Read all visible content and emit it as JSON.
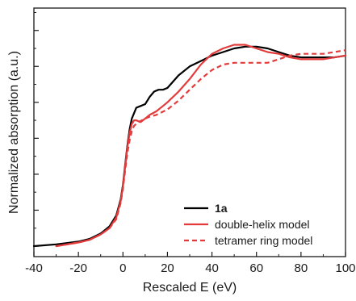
{
  "chart_data": {
    "type": "line",
    "xlabel": "Rescaled E (eV)",
    "ylabel": "Normalized absorption (a.u.)",
    "xlim": [
      -40,
      100
    ],
    "ylim": [
      0,
      1.32
    ],
    "x_ticks": [
      -40,
      -20,
      0,
      20,
      40,
      60,
      80,
      100
    ],
    "x_tick_labels": [
      "-40",
      "-20",
      "0",
      "20",
      "40",
      "60",
      "80",
      "100"
    ],
    "y_tick_labels_shown": false,
    "grid": false,
    "legend_position": "bottom-right",
    "series": [
      {
        "name": "1a",
        "color": "#000000",
        "style": "solid",
        "points": [
          [
            -40,
            0.0
          ],
          [
            -30,
            0.01
          ],
          [
            -20,
            0.025
          ],
          [
            -15,
            0.04
          ],
          [
            -10,
            0.07
          ],
          [
            -6,
            0.11
          ],
          [
            -3,
            0.17
          ],
          [
            -1,
            0.26
          ],
          [
            0,
            0.34
          ],
          [
            1,
            0.45
          ],
          [
            2,
            0.56
          ],
          [
            3,
            0.65
          ],
          [
            4,
            0.71
          ],
          [
            5,
            0.74
          ],
          [
            6,
            0.77
          ],
          [
            8,
            0.78
          ],
          [
            10,
            0.79
          ],
          [
            12,
            0.83
          ],
          [
            14,
            0.86
          ],
          [
            16,
            0.87
          ],
          [
            18,
            0.87
          ],
          [
            20,
            0.88
          ],
          [
            25,
            0.95
          ],
          [
            30,
            1.0
          ],
          [
            35,
            1.03
          ],
          [
            40,
            1.06
          ],
          [
            45,
            1.08
          ],
          [
            50,
            1.1
          ],
          [
            55,
            1.11
          ],
          [
            60,
            1.11
          ],
          [
            65,
            1.1
          ],
          [
            70,
            1.08
          ],
          [
            75,
            1.06
          ],
          [
            80,
            1.05
          ],
          [
            85,
            1.05
          ],
          [
            90,
            1.05
          ],
          [
            95,
            1.05
          ],
          [
            100,
            1.06
          ]
        ]
      },
      {
        "name": "double-helix model",
        "color": "#e33b3b",
        "style": "solid",
        "points": [
          [
            -30,
            0.0
          ],
          [
            -20,
            0.02
          ],
          [
            -15,
            0.035
          ],
          [
            -10,
            0.065
          ],
          [
            -6,
            0.1
          ],
          [
            -3,
            0.16
          ],
          [
            -1,
            0.25
          ],
          [
            0,
            0.33
          ],
          [
            1,
            0.44
          ],
          [
            2,
            0.55
          ],
          [
            3,
            0.63
          ],
          [
            4,
            0.68
          ],
          [
            5,
            0.7
          ],
          [
            6,
            0.7
          ],
          [
            8,
            0.69
          ],
          [
            10,
            0.71
          ],
          [
            12,
            0.73
          ],
          [
            15,
            0.75
          ],
          [
            18,
            0.78
          ],
          [
            20,
            0.8
          ],
          [
            25,
            0.86
          ],
          [
            30,
            0.93
          ],
          [
            35,
            1.01
          ],
          [
            40,
            1.07
          ],
          [
            45,
            1.1
          ],
          [
            50,
            1.12
          ],
          [
            55,
            1.12
          ],
          [
            60,
            1.1
          ],
          [
            65,
            1.08
          ],
          [
            70,
            1.07
          ],
          [
            75,
            1.05
          ],
          [
            80,
            1.04
          ],
          [
            85,
            1.04
          ],
          [
            90,
            1.04
          ],
          [
            95,
            1.05
          ],
          [
            100,
            1.06
          ]
        ]
      },
      {
        "name": "tetramer ring model",
        "color": "#e33b3b",
        "style": "dashed",
        "points": [
          [
            -30,
            0.0
          ],
          [
            -20,
            0.02
          ],
          [
            -15,
            0.035
          ],
          [
            -10,
            0.065
          ],
          [
            -6,
            0.1
          ],
          [
            -3,
            0.15
          ],
          [
            -1,
            0.24
          ],
          [
            0,
            0.32
          ],
          [
            1,
            0.42
          ],
          [
            2,
            0.52
          ],
          [
            3,
            0.59
          ],
          [
            4,
            0.64
          ],
          [
            5,
            0.67
          ],
          [
            7,
            0.69
          ],
          [
            10,
            0.71
          ],
          [
            12,
            0.72
          ],
          [
            15,
            0.73
          ],
          [
            20,
            0.76
          ],
          [
            25,
            0.81
          ],
          [
            30,
            0.87
          ],
          [
            35,
            0.93
          ],
          [
            40,
            0.98
          ],
          [
            45,
            1.01
          ],
          [
            50,
            1.02
          ],
          [
            55,
            1.02
          ],
          [
            60,
            1.02
          ],
          [
            65,
            1.02
          ],
          [
            70,
            1.04
          ],
          [
            75,
            1.06
          ],
          [
            80,
            1.07
          ],
          [
            85,
            1.07
          ],
          [
            90,
            1.07
          ],
          [
            95,
            1.08
          ],
          [
            100,
            1.09
          ]
        ]
      }
    ]
  }
}
